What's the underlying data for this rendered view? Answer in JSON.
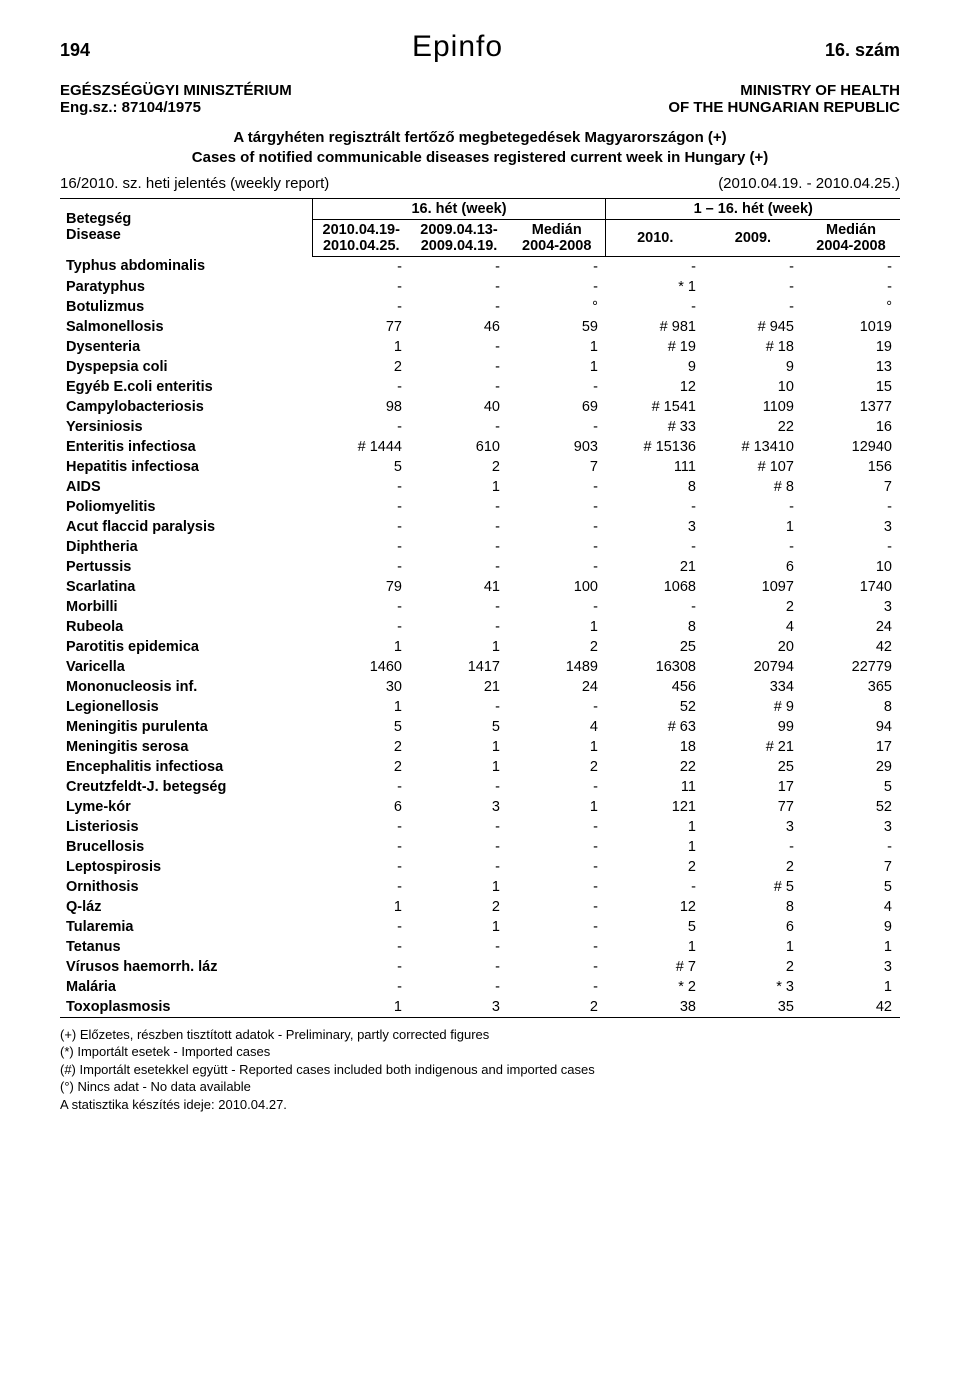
{
  "header": {
    "page_number": "194",
    "brand": "Epinfo",
    "issue": "16. szám"
  },
  "meta": {
    "left_line1": "EGÉSZSÉGÜGYI MINISZTÉRIUM",
    "left_line2": "Eng.sz.: 87104/1975",
    "right_line1": "MINISTRY OF HEALTH",
    "right_line2": "OF THE HUNGARIAN REPUBLIC"
  },
  "subtitle": {
    "line1": "A tárgyhéten regisztrált fertőző megbetegedések Magyarországon (+)",
    "line2": "Cases of notified communicable diseases registered current week in Hungary (+)"
  },
  "report_line": {
    "left": "16/2010. sz. heti jelentés (weekly report)",
    "right": "(2010.04.19. - 2010.04.25.)"
  },
  "table": {
    "disease_header": "Betegség\nDisease",
    "week_a_header": "16. hét (week)",
    "week_b_header": "1 – 16. hét (week)",
    "sub_headers": {
      "a1": "2010.04.19-\n2010.04.25.",
      "a2": "2009.04.13-\n2009.04.19.",
      "a3": "Medián\n2004-2008",
      "b1": "2010.",
      "b2": "2009.",
      "b3": "Medián\n2004-2008"
    },
    "rows": [
      {
        "d": "Typhus abdominalis",
        "v": [
          "-",
          "-",
          "-",
          "-",
          "-",
          "-"
        ]
      },
      {
        "d": "Paratyphus",
        "v": [
          "-",
          "-",
          "-",
          "* 1",
          "-",
          "-"
        ]
      },
      {
        "d": "Botulizmus",
        "v": [
          "-",
          "-",
          "°",
          "-",
          "-",
          "°"
        ]
      },
      {
        "d": "Salmonellosis",
        "v": [
          "77",
          "46",
          "59",
          "# 981",
          "# 945",
          "1019"
        ]
      },
      {
        "d": "Dysenteria",
        "v": [
          "1",
          "-",
          "1",
          "# 19",
          "# 18",
          "19"
        ]
      },
      {
        "d": "Dyspepsia coli",
        "v": [
          "2",
          "-",
          "1",
          "9",
          "9",
          "13"
        ]
      },
      {
        "d": "Egyéb E.coli enteritis",
        "v": [
          "-",
          "-",
          "-",
          "12",
          "10",
          "15"
        ]
      },
      {
        "d": "Campylobacteriosis",
        "v": [
          "98",
          "40",
          "69",
          "# 1541",
          "1109",
          "1377"
        ]
      },
      {
        "d": "Yersiniosis",
        "v": [
          "-",
          "-",
          "-",
          "# 33",
          "22",
          "16"
        ]
      },
      {
        "d": "Enteritis infectiosa",
        "v": [
          "# 1444",
          "610",
          "903",
          "# 15136",
          "# 13410",
          "12940"
        ]
      },
      {
        "d": "Hepatitis infectiosa",
        "v": [
          "5",
          "2",
          "7",
          "111",
          "# 107",
          "156"
        ]
      },
      {
        "d": "AIDS",
        "v": [
          "-",
          "1",
          "-",
          "8",
          "# 8",
          "7"
        ]
      },
      {
        "d": "Poliomyelitis",
        "v": [
          "-",
          "-",
          "-",
          "-",
          "-",
          "-"
        ]
      },
      {
        "d": "Acut flaccid paralysis",
        "v": [
          "-",
          "-",
          "-",
          "3",
          "1",
          "3"
        ]
      },
      {
        "d": "Diphtheria",
        "v": [
          "-",
          "-",
          "-",
          "-",
          "-",
          "-"
        ]
      },
      {
        "d": "Pertussis",
        "v": [
          "-",
          "-",
          "-",
          "21",
          "6",
          "10"
        ]
      },
      {
        "d": "Scarlatina",
        "v": [
          "79",
          "41",
          "100",
          "1068",
          "1097",
          "1740"
        ]
      },
      {
        "d": "Morbilli",
        "v": [
          "-",
          "-",
          "-",
          "-",
          "2",
          "3"
        ]
      },
      {
        "d": "Rubeola",
        "v": [
          "-",
          "-",
          "1",
          "8",
          "4",
          "24"
        ]
      },
      {
        "d": "Parotitis epidemica",
        "v": [
          "1",
          "1",
          "2",
          "25",
          "20",
          "42"
        ]
      },
      {
        "d": "Varicella",
        "v": [
          "1460",
          "1417",
          "1489",
          "16308",
          "20794",
          "22779"
        ]
      },
      {
        "d": "Mononucleosis inf.",
        "v": [
          "30",
          "21",
          "24",
          "456",
          "334",
          "365"
        ]
      },
      {
        "d": "Legionellosis",
        "v": [
          "1",
          "-",
          "-",
          "52",
          "# 9",
          "8"
        ]
      },
      {
        "d": "Meningitis purulenta",
        "v": [
          "5",
          "5",
          "4",
          "# 63",
          "99",
          "94"
        ]
      },
      {
        "d": "Meningitis serosa",
        "v": [
          "2",
          "1",
          "1",
          "18",
          "# 21",
          "17"
        ]
      },
      {
        "d": "Encephalitis infectiosa",
        "v": [
          "2",
          "1",
          "2",
          "22",
          "25",
          "29"
        ]
      },
      {
        "d": "Creutzfeldt-J. betegség",
        "v": [
          "-",
          "-",
          "-",
          "11",
          "17",
          "5"
        ]
      },
      {
        "d": "Lyme-kór",
        "v": [
          "6",
          "3",
          "1",
          "121",
          "77",
          "52"
        ]
      },
      {
        "d": "Listeriosis",
        "v": [
          "-",
          "-",
          "-",
          "1",
          "3",
          "3"
        ]
      },
      {
        "d": "Brucellosis",
        "v": [
          "-",
          "-",
          "-",
          "1",
          "-",
          "-"
        ]
      },
      {
        "d": "Leptospirosis",
        "v": [
          "-",
          "-",
          "-",
          "2",
          "2",
          "7"
        ]
      },
      {
        "d": "Ornithosis",
        "v": [
          "-",
          "1",
          "-",
          "-",
          "# 5",
          "5"
        ]
      },
      {
        "d": "Q-láz",
        "v": [
          "1",
          "2",
          "-",
          "12",
          "8",
          "4"
        ]
      },
      {
        "d": "Tularemia",
        "v": [
          "-",
          "1",
          "-",
          "5",
          "6",
          "9"
        ]
      },
      {
        "d": "Tetanus",
        "v": [
          "-",
          "-",
          "-",
          "1",
          "1",
          "1"
        ]
      },
      {
        "d": "Vírusos haemorrh. láz",
        "v": [
          "-",
          "-",
          "-",
          "# 7",
          "2",
          "3"
        ]
      },
      {
        "d": "Malária",
        "v": [
          "-",
          "-",
          "-",
          "* 2",
          "* 3",
          "1"
        ]
      },
      {
        "d": "Toxoplasmosis",
        "v": [
          "1",
          "3",
          "2",
          "38",
          "35",
          "42"
        ]
      }
    ]
  },
  "footnotes": [
    "(+) Előzetes, részben tisztított adatok - Preliminary, partly corrected figures",
    "(*) Importált esetek - Imported cases",
    "(#) Importált esetekkel együtt - Reported cases included both indigenous and imported cases",
    "(°) Nincs adat - No data available",
    "A statisztika készítés ideje: 2010.04.27."
  ],
  "style": {
    "background_color": "#ffffff",
    "text_color": "#000000",
    "border_color": "#000000",
    "brand_font": "Impact, Arial Black, sans-serif",
    "body_fontsize_pt": 11,
    "header_fontsize_pt": 11,
    "brand_fontsize_pt": 22
  }
}
